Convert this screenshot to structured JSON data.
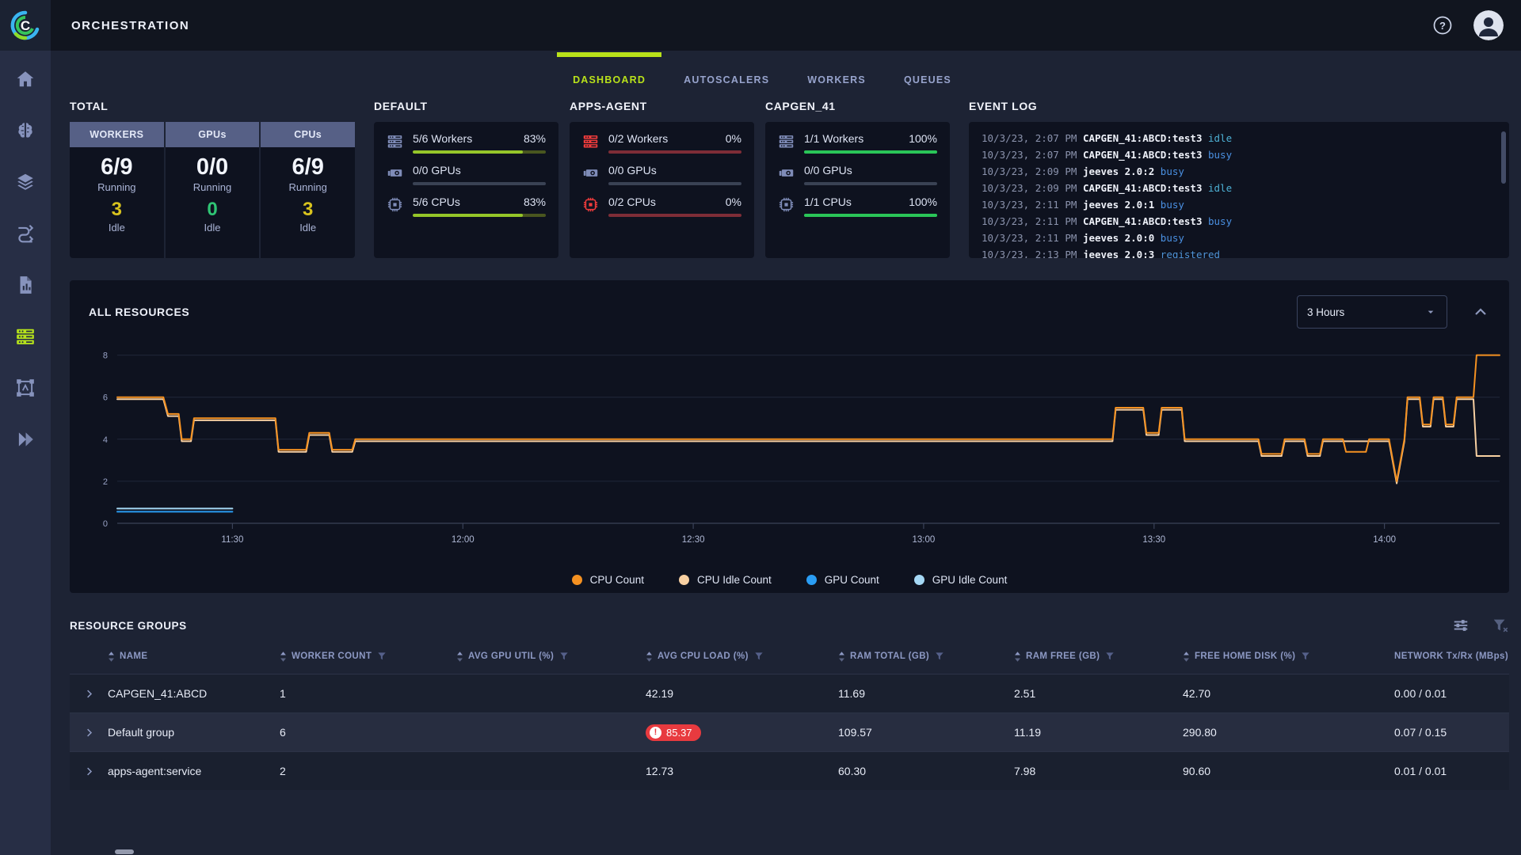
{
  "topbar": {
    "title": "ORCHESTRATION"
  },
  "sidebar": {
    "items": [
      {
        "id": "home",
        "icon": "home-icon",
        "active": false
      },
      {
        "id": "projects",
        "icon": "brain-icon",
        "active": false
      },
      {
        "id": "datasets",
        "icon": "layers-icon",
        "active": false
      },
      {
        "id": "pipelines",
        "icon": "pipeline-icon",
        "active": false
      },
      {
        "id": "reports",
        "icon": "report-icon",
        "active": false
      },
      {
        "id": "orchestration",
        "icon": "servers-icon",
        "active": true
      },
      {
        "id": "annotation",
        "icon": "annotation-icon",
        "active": false
      },
      {
        "id": "applications",
        "icon": "apps-icon",
        "active": false
      }
    ]
  },
  "tabs": [
    {
      "label": "DASHBOARD",
      "active": true
    },
    {
      "label": "AUTOSCALERS",
      "active": false
    },
    {
      "label": "WORKERS",
      "active": false
    },
    {
      "label": "QUEUES",
      "active": false
    }
  ],
  "total_card": {
    "title": "TOTAL",
    "columns": [
      {
        "header": "WORKERS",
        "running_value": "6/9",
        "running_label": "Running",
        "idle_value": "3",
        "idle_label": "Idle",
        "idle_color": "#d8c31e"
      },
      {
        "header": "GPUs",
        "running_value": "0/0",
        "running_label": "Running",
        "idle_value": "0",
        "idle_label": "Idle",
        "idle_color": "#2fc474"
      },
      {
        "header": "CPUs",
        "running_value": "6/9",
        "running_label": "Running",
        "idle_value": "3",
        "idle_label": "Idle",
        "idle_color": "#d8c31e"
      }
    ]
  },
  "queue_cards": [
    {
      "title": "DEFAULT",
      "rows": [
        {
          "icon": "workers-icon",
          "icon_color": "#7f8cb8",
          "label": "5/6 Workers",
          "percent": "83%",
          "fill": 0.83,
          "fill_color": "#95c629",
          "track_color": "#49561f"
        },
        {
          "icon": "gpu-icon",
          "icon_color": "#7f8cb8",
          "label": "0/0 GPUs",
          "percent": "",
          "fill": 0,
          "fill_color": "#3a4254",
          "track_color": "#3a4254"
        },
        {
          "icon": "cpu-icon",
          "icon_color": "#7f8cb8",
          "label": "5/6 CPUs",
          "percent": "83%",
          "fill": 0.83,
          "fill_color": "#95c629",
          "track_color": "#49561f"
        }
      ]
    },
    {
      "title": "APPS-AGENT",
      "rows": [
        {
          "icon": "workers-icon",
          "icon_color": "#f03c3c",
          "label": "0/2 Workers",
          "percent": "0%",
          "fill": 0,
          "fill_color": "#7e2d37",
          "track_color": "#7e2d37"
        },
        {
          "icon": "gpu-icon",
          "icon_color": "#7f8cb8",
          "label": "0/0 GPUs",
          "percent": "",
          "fill": 0,
          "fill_color": "#3a4254",
          "track_color": "#3a4254"
        },
        {
          "icon": "cpu-icon",
          "icon_color": "#f03c3c",
          "label": "0/2 CPUs",
          "percent": "0%",
          "fill": 0,
          "fill_color": "#7e2d37",
          "track_color": "#7e2d37"
        }
      ]
    },
    {
      "title": "CAPGEN_41",
      "rows": [
        {
          "icon": "workers-icon",
          "icon_color": "#7f8cb8",
          "label": "1/1 Workers",
          "percent": "100%",
          "fill": 1,
          "fill_color": "#2ac558",
          "track_color": "#2ac558"
        },
        {
          "icon": "gpu-icon",
          "icon_color": "#7f8cb8",
          "label": "0/0 GPUs",
          "percent": "",
          "fill": 0,
          "fill_color": "#3a4254",
          "track_color": "#3a4254"
        },
        {
          "icon": "cpu-icon",
          "icon_color": "#7f8cb8",
          "label": "1/1 CPUs",
          "percent": "100%",
          "fill": 1,
          "fill_color": "#2ac558",
          "track_color": "#2ac558"
        }
      ]
    }
  ],
  "event_log": {
    "title": "EVENT LOG",
    "status_colors": {
      "idle": "#4db0d4",
      "busy": "#4a90e2",
      "registered": "#4f93d6"
    },
    "entries": [
      {
        "time": "10/3/23, 2:07 PM",
        "name": "CAPGEN_41:ABCD:test3",
        "status": "idle"
      },
      {
        "time": "10/3/23, 2:07 PM",
        "name": "CAPGEN_41:ABCD:test3",
        "status": "busy"
      },
      {
        "time": "10/3/23, 2:09 PM",
        "name": "jeeves 2.0:2",
        "status": "busy"
      },
      {
        "time": "10/3/23, 2:09 PM",
        "name": "CAPGEN_41:ABCD:test3",
        "status": "idle"
      },
      {
        "time": "10/3/23, 2:11 PM",
        "name": "jeeves 2.0:1",
        "status": "busy"
      },
      {
        "time": "10/3/23, 2:11 PM",
        "name": "CAPGEN_41:ABCD:test3",
        "status": "busy"
      },
      {
        "time": "10/3/23, 2:11 PM",
        "name": "jeeves 2.0:0",
        "status": "busy"
      },
      {
        "time": "10/3/23, 2:13 PM",
        "name": "jeeves 2.0:3",
        "status": "registered"
      }
    ]
  },
  "chart_panel": {
    "title": "ALL RESOURCES",
    "range_value": "3 Hours"
  },
  "chart_data": {
    "type": "line",
    "title": "ALL RESOURCES",
    "xlabel": "",
    "ylabel": "",
    "ylim": [
      0,
      8.7
    ],
    "y_ticks": [
      0,
      2,
      4,
      6,
      8
    ],
    "x_end_minutes": 180,
    "x_ticks": [
      {
        "t": 15,
        "label": "11:30"
      },
      {
        "t": 45,
        "label": "12:00"
      },
      {
        "t": 75,
        "label": "12:30"
      },
      {
        "t": 105,
        "label": "13:00"
      },
      {
        "t": 135,
        "label": "13:30"
      },
      {
        "t": 165,
        "label": "14:00"
      }
    ],
    "grid": "subtle-horizontal",
    "legend_position": "bottom",
    "legend": [
      {
        "label": "CPU Count",
        "color": "#f59121"
      },
      {
        "label": "CPU Idle Count",
        "color": "#f8d0a2"
      },
      {
        "label": "GPU Count",
        "color": "#2a9df4"
      },
      {
        "label": "GPU Idle Count",
        "color": "#a5d8f5"
      }
    ],
    "series": [
      {
        "name": "GPU Idle Count",
        "color": "#a5d8f5",
        "points": [
          [
            0,
            0.7
          ],
          [
            15,
            0.7
          ]
        ]
      },
      {
        "name": "GPU Count",
        "color": "#2a9df4",
        "points": [
          [
            0,
            0.55
          ],
          [
            15,
            0.55
          ]
        ]
      },
      {
        "name": "CPU Idle Count",
        "color": "#f8d0a2",
        "points": [
          [
            0,
            5.9
          ],
          [
            6,
            5.9
          ],
          [
            6.6,
            5.1
          ],
          [
            8,
            5.1
          ],
          [
            8.4,
            3.9
          ],
          [
            9.6,
            3.9
          ],
          [
            10,
            4.9
          ],
          [
            20.6,
            4.9
          ],
          [
            21,
            3.4
          ],
          [
            24.6,
            3.4
          ],
          [
            25,
            4.2
          ],
          [
            27.6,
            4.2
          ],
          [
            28,
            3.4
          ],
          [
            30.6,
            3.4
          ],
          [
            31,
            3.9
          ],
          [
            129.6,
            3.9
          ],
          [
            130,
            5.4
          ],
          [
            133.6,
            5.4
          ],
          [
            134,
            4.2
          ],
          [
            135.6,
            4.2
          ],
          [
            136,
            5.4
          ],
          [
            138.6,
            5.4
          ],
          [
            139,
            3.9
          ],
          [
            148.6,
            3.9
          ],
          [
            149,
            3.2
          ],
          [
            151.6,
            3.2
          ],
          [
            152,
            3.9
          ],
          [
            154.6,
            3.9
          ],
          [
            155,
            3.2
          ],
          [
            156.6,
            3.2
          ],
          [
            157,
            3.9
          ],
          [
            165.6,
            3.9
          ],
          [
            166.6,
            1.9
          ],
          [
            167.6,
            3.9
          ],
          [
            168,
            5.9
          ],
          [
            169.6,
            5.9
          ],
          [
            170,
            4.6
          ],
          [
            171,
            4.6
          ],
          [
            171.4,
            5.9
          ],
          [
            172.6,
            5.9
          ],
          [
            173,
            4.6
          ],
          [
            174,
            4.6
          ],
          [
            174.4,
            5.9
          ],
          [
            176.6,
            5.9
          ],
          [
            177,
            3.2
          ],
          [
            180,
            3.2
          ]
        ]
      },
      {
        "name": "CPU Count",
        "color": "#f59121",
        "points": [
          [
            0,
            6
          ],
          [
            6,
            6
          ],
          [
            6.6,
            5.2
          ],
          [
            8,
            5.2
          ],
          [
            8.4,
            4
          ],
          [
            9.6,
            4
          ],
          [
            10,
            5
          ],
          [
            20.6,
            5
          ],
          [
            21,
            3.5
          ],
          [
            24.6,
            3.5
          ],
          [
            25,
            4.3
          ],
          [
            27.6,
            4.3
          ],
          [
            28,
            3.5
          ],
          [
            30.6,
            3.5
          ],
          [
            31,
            4
          ],
          [
            129.6,
            4
          ],
          [
            130,
            5.5
          ],
          [
            133.6,
            5.5
          ],
          [
            134,
            4.3
          ],
          [
            135.6,
            4.3
          ],
          [
            136,
            5.5
          ],
          [
            138.6,
            5.5
          ],
          [
            139,
            4
          ],
          [
            148.6,
            4
          ],
          [
            149,
            3.3
          ],
          [
            151.6,
            3.3
          ],
          [
            152,
            4
          ],
          [
            154.6,
            4
          ],
          [
            155,
            3.3
          ],
          [
            156.6,
            3.3
          ],
          [
            157,
            4
          ],
          [
            159.6,
            4
          ],
          [
            160,
            3.4
          ],
          [
            162.6,
            3.4
          ],
          [
            163,
            4
          ],
          [
            165.6,
            4
          ],
          [
            166.6,
            2
          ],
          [
            167.6,
            4
          ],
          [
            168,
            6
          ],
          [
            169.6,
            6
          ],
          [
            170,
            4.7
          ],
          [
            171,
            4.7
          ],
          [
            171.4,
            6
          ],
          [
            172.6,
            6
          ],
          [
            173,
            4.7
          ],
          [
            174,
            4.7
          ],
          [
            174.4,
            6
          ],
          [
            176.6,
            6
          ],
          [
            177,
            8
          ],
          [
            180,
            8
          ]
        ]
      }
    ]
  },
  "table": {
    "title": "RESOURCE GROUPS",
    "columns": [
      {
        "label": "NAME",
        "sortable": true,
        "filterable": false
      },
      {
        "label": "WORKER COUNT",
        "sortable": true,
        "filterable": true
      },
      {
        "label": "AVG GPU UTIL (%)",
        "sortable": true,
        "filterable": true
      },
      {
        "label": "AVG CPU LOAD (%)",
        "sortable": true,
        "filterable": true
      },
      {
        "label": "RAM TOTAL (GB)",
        "sortable": true,
        "filterable": true
      },
      {
        "label": "RAM FREE (GB)",
        "sortable": true,
        "filterable": true
      },
      {
        "label": "FREE HOME DISK (%)",
        "sortable": true,
        "filterable": true
      },
      {
        "label": "NETWORK Tx/Rx (MBps)",
        "sortable": false,
        "filterable": false
      }
    ],
    "rows": [
      {
        "name": "CAPGEN_41:ABCD",
        "worker_count": "1",
        "avg_gpu_util": "",
        "avg_cpu_load": "42.19",
        "cpu_load_alert": false,
        "ram_total": "11.69",
        "ram_free": "2.51",
        "free_home_disk": "42.70",
        "network": "0.00 / 0.01"
      },
      {
        "name": "Default group",
        "worker_count": "6",
        "avg_gpu_util": "",
        "avg_cpu_load": "85.37",
        "cpu_load_alert": true,
        "ram_total": "109.57",
        "ram_free": "11.19",
        "free_home_disk": "290.80",
        "network": "0.07 / 0.15"
      },
      {
        "name": "apps-agent:service",
        "worker_count": "2",
        "avg_gpu_util": "",
        "avg_cpu_load": "12.73",
        "cpu_load_alert": false,
        "ram_total": "60.30",
        "ram_free": "7.98",
        "free_home_disk": "90.60",
        "network": "0.01 / 0.01"
      }
    ]
  },
  "colors": {
    "accent": "#b9e21a",
    "alert_red": "#e83a3f",
    "bar_green": "#2ac558",
    "bar_partial_green": "#95c629",
    "bar_red": "#7e2d37",
    "idle_yellow": "#d8c31e",
    "idle_green": "#2fc474"
  }
}
